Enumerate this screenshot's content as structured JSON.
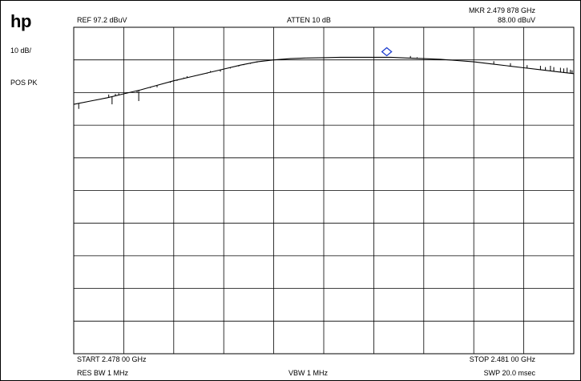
{
  "brand": {
    "logo_text": "hp"
  },
  "annotations": {
    "ref": "REF  97.2 dBuV",
    "atten": "ATTEN 10 dB",
    "marker_freq": "MKR 2.479 878 GHz",
    "marker_level": "88.00 dBuV",
    "scale": "10 dB/",
    "detector": "POS PK",
    "start": "START 2.478 00 GHz",
    "stop": "STOP 2.481 00 GHz",
    "res_bw": "RES BW 1 MHz",
    "vbw": "VBW 1 MHz",
    "sweep": "SWP 20.0 msec"
  },
  "colors": {
    "trace": "#000000",
    "grid": "#000000",
    "marker": "#1f3fd0"
  },
  "chart_data": {
    "type": "line",
    "title": "",
    "xlabel": "",
    "ylabel": "",
    "x_unit": "GHz",
    "y_unit": "dBuV",
    "xlim": [
      2.478,
      2.481
    ],
    "ylim": [
      -2.8,
      97.2
    ],
    "grid": true,
    "grid_divisions": {
      "x": 10,
      "y": 10
    },
    "series": [
      {
        "x": [
          2.478,
          2.4781,
          2.4782,
          2.4783,
          2.4784,
          2.4785,
          2.4786,
          2.4787,
          2.4788,
          2.4789,
          2.479,
          2.4791,
          2.4792,
          2.4793,
          2.4794,
          2.4795,
          2.4796,
          2.4797,
          2.4798,
          2.4799,
          2.48,
          2.4801,
          2.4802,
          2.4803,
          2.4804,
          2.4805,
          2.4806,
          2.4807,
          2.4808,
          2.4809,
          2.481
        ],
        "y": [
          73.6,
          74.6,
          75.6,
          76.8,
          78.0,
          79.4,
          80.8,
          82.0,
          83.2,
          84.4,
          85.6,
          86.6,
          87.2,
          87.6,
          87.8,
          87.9,
          88.0,
          88.0,
          88.0,
          88.0,
          87.8,
          87.6,
          87.4,
          87.0,
          86.6,
          86.0,
          85.4,
          84.8,
          84.2,
          83.6,
          83.0
        ]
      }
    ],
    "spurs": [
      {
        "x": 2.47803,
        "y": 72.2
      },
      {
        "x": 2.47821,
        "y": 76.6
      },
      {
        "x": 2.47823,
        "y": 73.6
      },
      {
        "x": 2.47825,
        "y": 76.8
      },
      {
        "x": 2.47827,
        "y": 77.0
      },
      {
        "x": 2.47838,
        "y": 77.2
      },
      {
        "x": 2.47839,
        "y": 74.6
      },
      {
        "x": 2.47846,
        "y": 78.6
      },
      {
        "x": 2.4785,
        "y": 78.8
      },
      {
        "x": 2.47858,
        "y": 80.2
      },
      {
        "x": 2.47862,
        "y": 80.8
      },
      {
        "x": 2.47866,
        "y": 81.8
      },
      {
        "x": 2.47868,
        "y": 82.2
      },
      {
        "x": 2.4787,
        "y": 82.0
      },
      {
        "x": 2.47874,
        "y": 82.4
      },
      {
        "x": 2.47876,
        "y": 82.8
      },
      {
        "x": 2.4788,
        "y": 83.0
      },
      {
        "x": 2.47882,
        "y": 83.8
      },
      {
        "x": 2.47888,
        "y": 83.6
      },
      {
        "x": 2.47894,
        "y": 84.6
      },
      {
        "x": 2.47899,
        "y": 85.2
      },
      {
        "x": 2.47902,
        "y": 85.6
      },
      {
        "x": 2.47906,
        "y": 86.0
      },
      {
        "x": 2.4791,
        "y": 86.4
      },
      {
        "x": 2.48002,
        "y": 88.4
      },
      {
        "x": 2.48006,
        "y": 88.0
      },
      {
        "x": 2.48052,
        "y": 86.8
      },
      {
        "x": 2.48062,
        "y": 86.2
      },
      {
        "x": 2.48072,
        "y": 85.6
      },
      {
        "x": 2.4808,
        "y": 85.4
      },
      {
        "x": 2.48083,
        "y": 85.0
      },
      {
        "x": 2.48086,
        "y": 85.4
      },
      {
        "x": 2.48088,
        "y": 85.0
      },
      {
        "x": 2.48092,
        "y": 84.8
      },
      {
        "x": 2.48094,
        "y": 84.6
      },
      {
        "x": 2.48096,
        "y": 84.8
      },
      {
        "x": 2.48098,
        "y": 84.2
      },
      {
        "x": 2.48099,
        "y": 84.0
      }
    ],
    "marker": {
      "x": 2.479878,
      "y": 88.0,
      "shape": "diamond"
    }
  }
}
